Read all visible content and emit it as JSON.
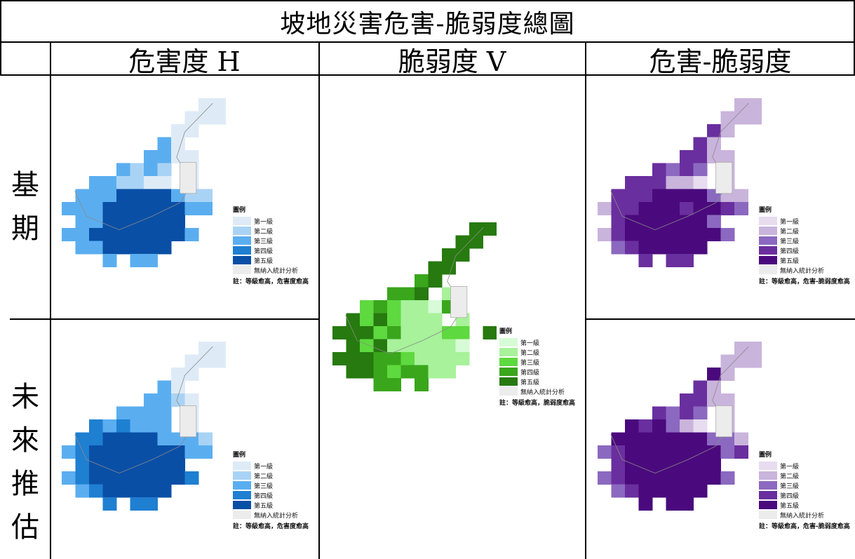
{
  "title": "坡地災害危害-脆弱度總圖",
  "columns": {
    "hazard": "危害度 H",
    "vulnerability": "脆弱度 V",
    "risk": "危害-脆弱度"
  },
  "rows": {
    "baseline": "基期",
    "future": "未來推估"
  },
  "legend": {
    "title": "圖例",
    "levels": [
      "第一級",
      "第二級",
      "第三級",
      "第四級",
      "第五級"
    ],
    "excluded": "無納入統計分析",
    "note_hazard": "註：等級愈高，危害度愈高",
    "note_vulnerability": "註：等級愈高，脆弱度愈高",
    "note_risk": "註：等級愈高，危害-脆弱度愈高"
  },
  "palettes": {
    "blue": [
      "#deebf7",
      "#a9d3f5",
      "#5aaef0",
      "#1f7fd1",
      "#0a4fa6"
    ],
    "green": [
      "#d7fbd7",
      "#a7f29a",
      "#5ed93f",
      "#3aa61c",
      "#267a0f"
    ],
    "purple": [
      "#e7dcf0",
      "#c9b4dc",
      "#8b69c0",
      "#6a2f9e",
      "#4a0a7d"
    ],
    "excluded": "#ececec"
  }
}
